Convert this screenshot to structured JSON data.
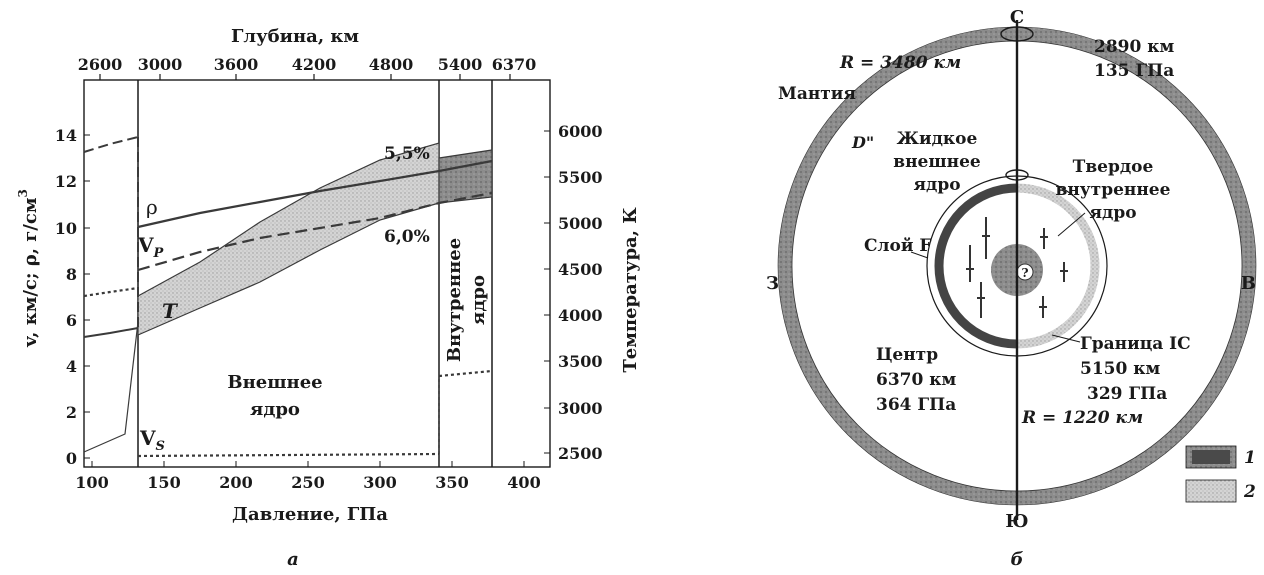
{
  "left_panel": {
    "top_axis_title": "Глубина, км",
    "top_ticks": [
      "2600",
      "3000",
      "3600",
      "4200",
      "4800",
      "5400",
      "6370"
    ],
    "bottom_axis_title": "Давление, ГПа",
    "bottom_ticks": [
      "100",
      "150",
      "200",
      "250",
      "300",
      "350",
      "400"
    ],
    "left_axis_title": "v, км/с; ρ, г/см",
    "left_axis_superscript": "3",
    "left_ticks": [
      "0",
      "2",
      "4",
      "6",
      "8",
      "10",
      "12",
      "14"
    ],
    "right_axis_title": "Температура, К",
    "right_ticks": [
      "2500",
      "3000",
      "3500",
      "4000",
      "4500",
      "5000",
      "5500",
      "6000"
    ],
    "labels": {
      "rho": "ρ",
      "vp": "V",
      "vp_sub": "P",
      "vs": "V",
      "vs_sub": "S",
      "temp": "T",
      "pct_upper": "5,5%",
      "pct_lower": "6,0%",
      "outer_core_1": "Внешнее",
      "outer_core_2": "ядро",
      "inner_core_1": "Внутреннее",
      "inner_core_2": "ядро"
    },
    "caption": "а"
  },
  "right_panel": {
    "north": "С",
    "south": "Ю",
    "west": "З",
    "east": "В",
    "r_outer": "R = 3480 км",
    "mantle": "Мантия",
    "d_double_prime": "D\"",
    "depth_label": "2890 км",
    "pressure_label": "135 ГПа",
    "liquid_core_1": "Жидкое",
    "liquid_core_2": "внешнее",
    "liquid_core_3": "ядро",
    "solid_core_1": "Твердое",
    "solid_core_2": "внутреннее",
    "solid_core_3": "ядро",
    "layer_f": "Слой F",
    "question": "?",
    "center_1": "Центр",
    "center_2": "6370 км",
    "center_3": "364 ГПа",
    "ic_boundary_1": "Граница IC",
    "ic_boundary_2": "5150 км",
    "ic_boundary_3": "329 ГПа",
    "r_inner": "R = 1220 км",
    "legend": [
      {
        "key": "1",
        "color": "#4a4a4a"
      },
      {
        "key": "2",
        "color": "#cfcfcf"
      }
    ],
    "caption": "б"
  }
}
